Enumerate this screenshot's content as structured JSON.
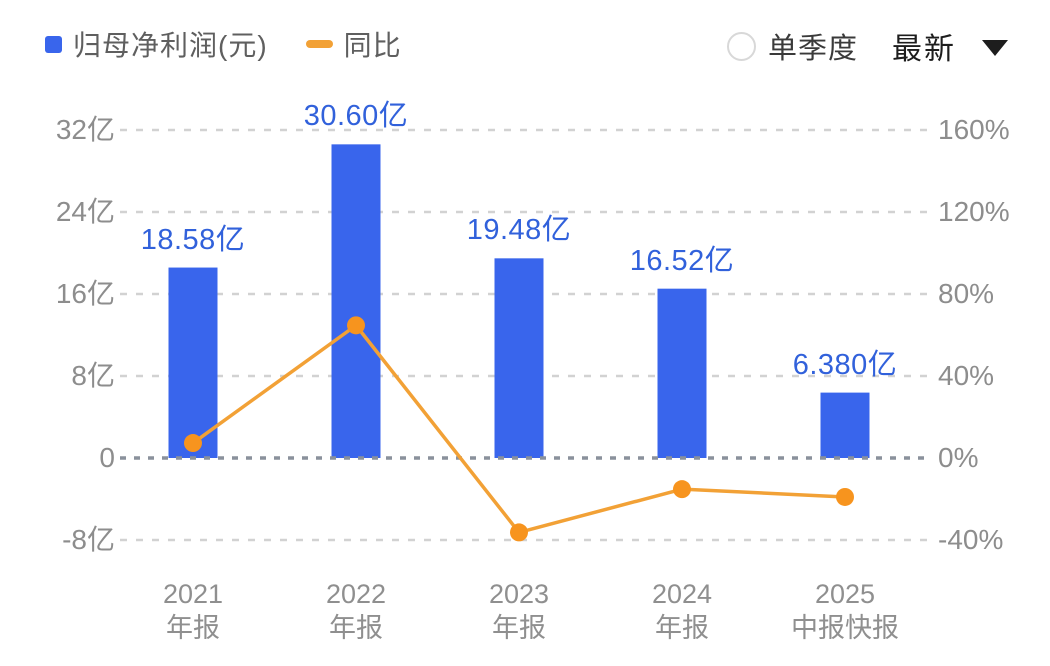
{
  "legend": {
    "bar_label": "归母净利润(元)",
    "line_label": "同比"
  },
  "controls": {
    "radio_label": "单季度",
    "dropdown_value": "最新"
  },
  "colors": {
    "bar": "#3965EC",
    "bar_label_text": "#3161DB",
    "line": "#F2A136",
    "dot": "#F7941E",
    "grid": "#d2d2d2",
    "zero_line": "#8a919c",
    "axis_text": "#8d8d8d",
    "x_label_text": "#8f8f8f"
  },
  "chart_data": {
    "type": "bar",
    "title": "",
    "categories": [
      [
        "2021",
        "年报"
      ],
      [
        "2022",
        "年报"
      ],
      [
        "2023",
        "年报"
      ],
      [
        "2024",
        "年报"
      ],
      [
        "2025",
        "中报快报"
      ]
    ],
    "series": [
      {
        "name": "归母净利润(元)",
        "type": "bar",
        "unit": "亿",
        "values": [
          18.58,
          30.6,
          19.48,
          16.52,
          6.38
        ],
        "labels": [
          "18.58亿",
          "30.60亿",
          "19.48亿",
          "16.52亿",
          "6.380亿"
        ]
      },
      {
        "name": "同比",
        "type": "line",
        "unit": "%",
        "values": [
          7.3,
          64.7,
          -36.3,
          -15.2,
          -19.0
        ]
      }
    ],
    "left_axis": {
      "ticks": [
        "32亿",
        "24亿",
        "16亿",
        "8亿",
        "0",
        "-8亿"
      ],
      "values": [
        32,
        24,
        16,
        8,
        0,
        -8
      ],
      "range": [
        -12,
        36
      ]
    },
    "right_axis": {
      "ticks": [
        "160%",
        "120%",
        "80%",
        "40%",
        "0%",
        "-40%"
      ],
      "values": [
        160,
        120,
        80,
        40,
        0,
        -40
      ],
      "range": [
        -60,
        180
      ]
    },
    "grid": "dashed horizontal",
    "legend_position": "top-left"
  }
}
